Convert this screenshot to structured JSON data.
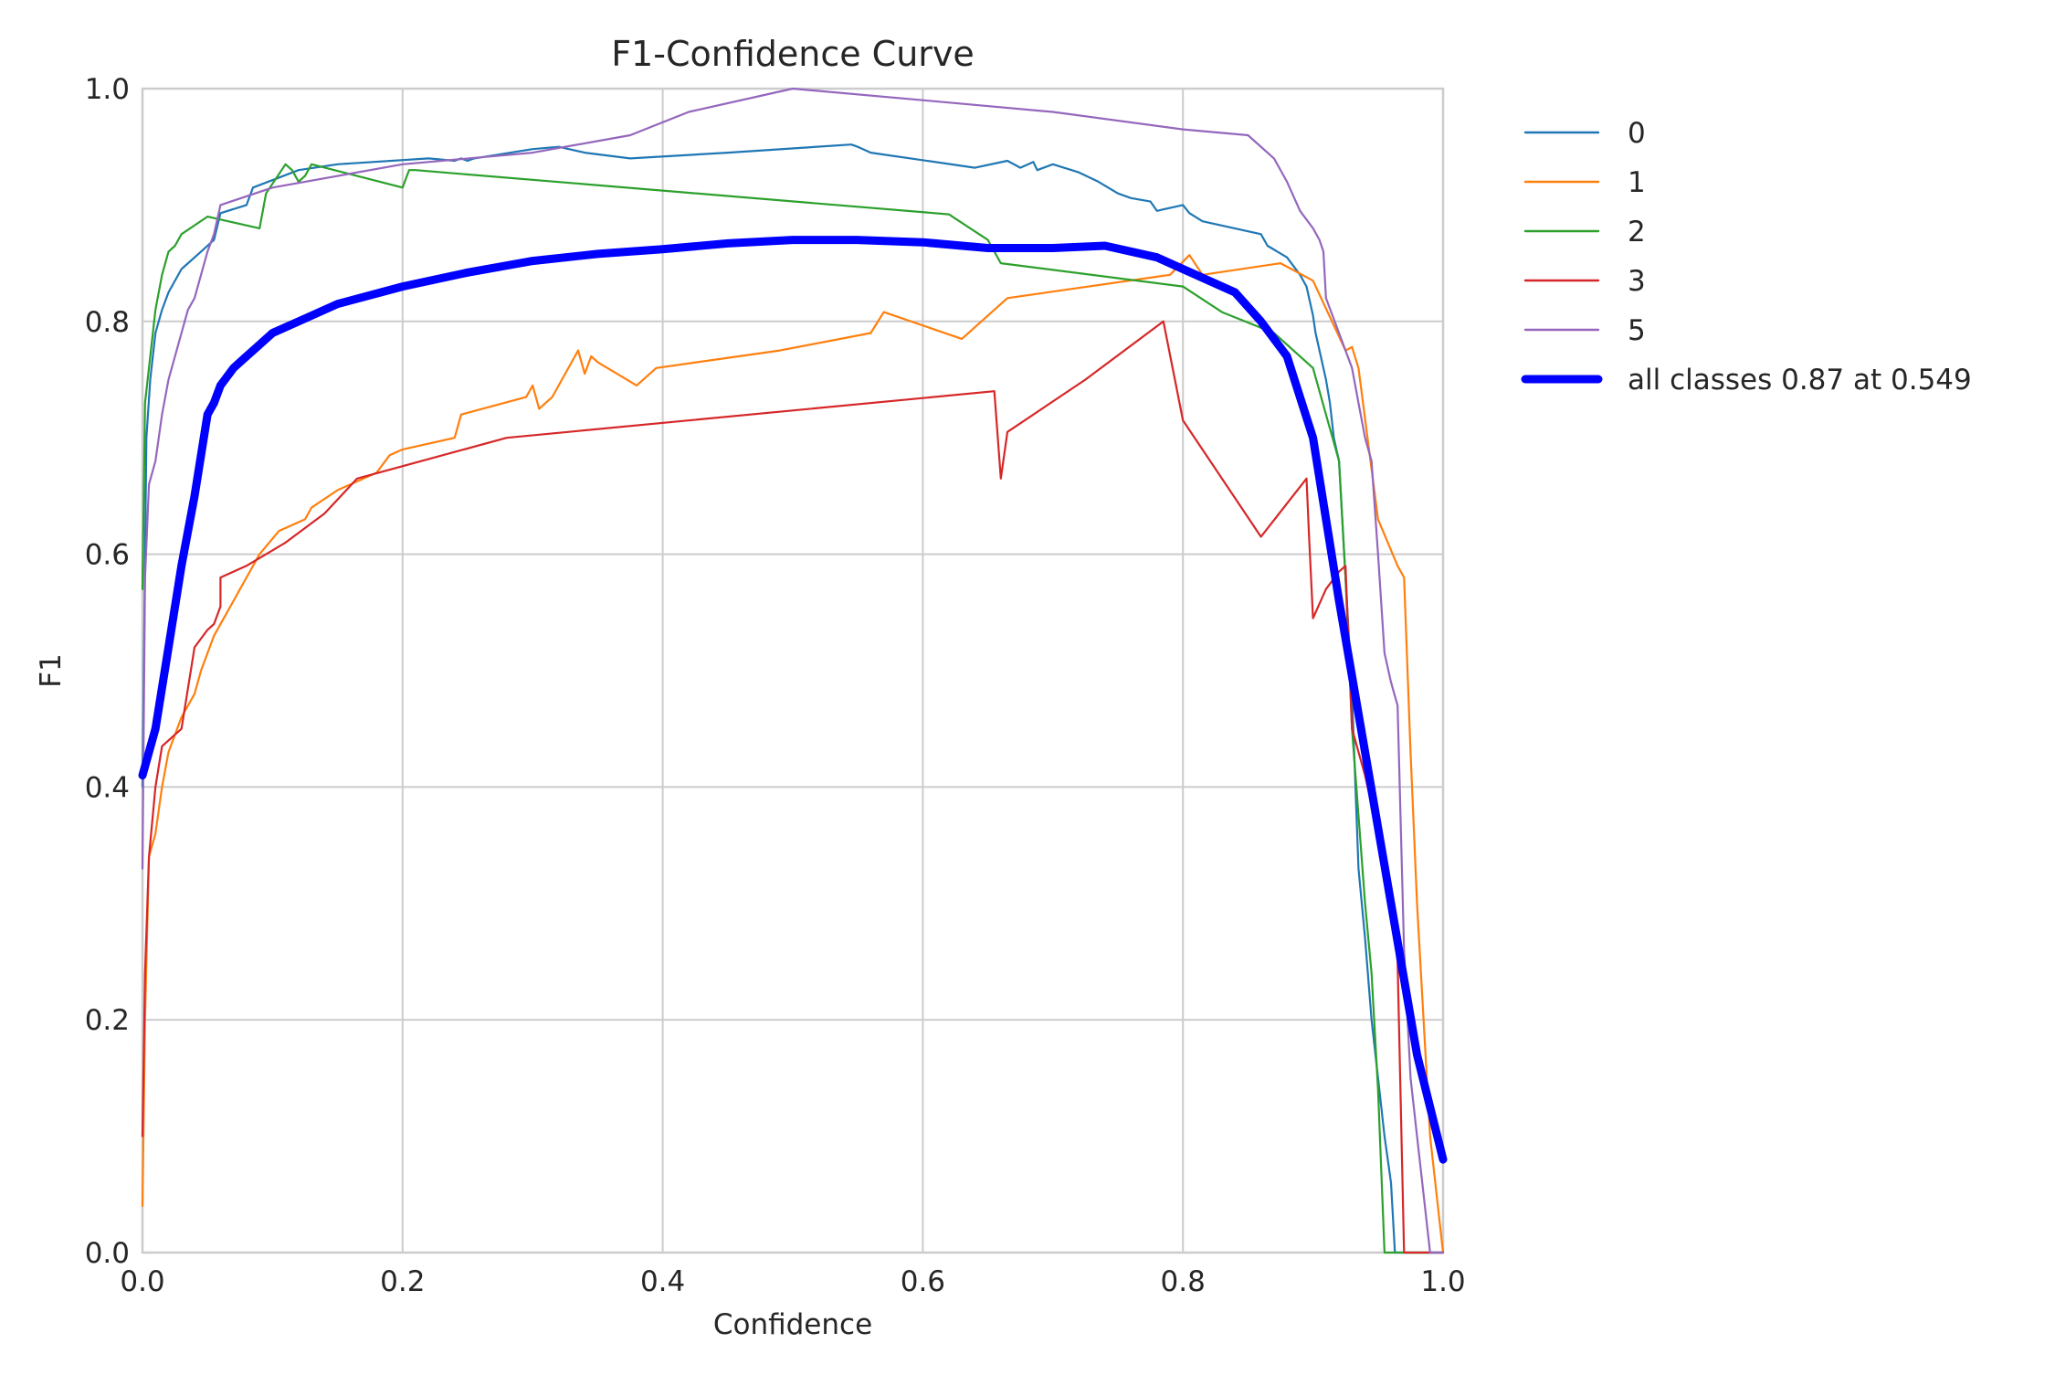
{
  "chart_data": {
    "type": "line",
    "title": "F1-Confidence Curve",
    "xlabel": "Confidence",
    "ylabel": "F1",
    "xlim": [
      0.0,
      1.0
    ],
    "ylim": [
      0.0,
      1.0
    ],
    "xticks": [
      "0.0",
      "0.2",
      "0.4",
      "0.6",
      "0.8",
      "1.0"
    ],
    "yticks": [
      "0.0",
      "0.2",
      "0.4",
      "0.6",
      "0.8",
      "1.0"
    ],
    "grid": true,
    "legend_position": "outside-right",
    "series": [
      {
        "name": "0",
        "color": "#1f77b4",
        "x": [
          0.0,
          0.003,
          0.006,
          0.01,
          0.015,
          0.02,
          0.03,
          0.045,
          0.055,
          0.06,
          0.08,
          0.085,
          0.12,
          0.15,
          0.22,
          0.24,
          0.245,
          0.25,
          0.255,
          0.3,
          0.32,
          0.34,
          0.375,
          0.45,
          0.545,
          0.55,
          0.56,
          0.64,
          0.665,
          0.675,
          0.685,
          0.688,
          0.7,
          0.72,
          0.735,
          0.75,
          0.76,
          0.775,
          0.78,
          0.8,
          0.805,
          0.815,
          0.86,
          0.865,
          0.88,
          0.89,
          0.895,
          0.9,
          0.902,
          0.905,
          0.91,
          0.913,
          0.916,
          0.92,
          0.925,
          0.93,
          0.935,
          0.94,
          0.945,
          0.95,
          0.955,
          0.96,
          0.963,
          0.965,
          1.0
        ],
        "y": [
          0.4,
          0.7,
          0.75,
          0.79,
          0.81,
          0.825,
          0.845,
          0.86,
          0.87,
          0.893,
          0.9,
          0.915,
          0.93,
          0.935,
          0.94,
          0.938,
          0.94,
          0.938,
          0.94,
          0.948,
          0.95,
          0.945,
          0.94,
          0.945,
          0.952,
          0.95,
          0.945,
          0.932,
          0.938,
          0.932,
          0.937,
          0.93,
          0.935,
          0.928,
          0.92,
          0.91,
          0.906,
          0.903,
          0.895,
          0.9,
          0.893,
          0.886,
          0.875,
          0.865,
          0.855,
          0.84,
          0.83,
          0.805,
          0.79,
          0.775,
          0.75,
          0.73,
          0.7,
          0.68,
          0.58,
          0.48,
          0.33,
          0.27,
          0.2,
          0.15,
          0.1,
          0.06,
          0.0,
          0.0,
          0.0
        ]
      },
      {
        "name": "1",
        "color": "#ff7f0e",
        "x": [
          0.0,
          0.002,
          0.005,
          0.01,
          0.015,
          0.02,
          0.03,
          0.04,
          0.045,
          0.055,
          0.065,
          0.07,
          0.075,
          0.08,
          0.09,
          0.105,
          0.125,
          0.13,
          0.15,
          0.17,
          0.18,
          0.19,
          0.2,
          0.24,
          0.245,
          0.295,
          0.3,
          0.305,
          0.315,
          0.325,
          0.335,
          0.34,
          0.345,
          0.35,
          0.38,
          0.395,
          0.49,
          0.56,
          0.57,
          0.63,
          0.645,
          0.665,
          0.79,
          0.805,
          0.815,
          0.875,
          0.9,
          0.925,
          0.93,
          0.935,
          0.95,
          0.965,
          0.97,
          0.975,
          0.98,
          0.99,
          1.0
        ],
        "y": [
          0.04,
          0.2,
          0.34,
          0.36,
          0.4,
          0.43,
          0.46,
          0.48,
          0.5,
          0.53,
          0.55,
          0.56,
          0.57,
          0.58,
          0.6,
          0.62,
          0.63,
          0.64,
          0.655,
          0.665,
          0.67,
          0.685,
          0.69,
          0.7,
          0.72,
          0.735,
          0.745,
          0.725,
          0.735,
          0.755,
          0.775,
          0.755,
          0.77,
          0.765,
          0.745,
          0.76,
          0.775,
          0.79,
          0.808,
          0.785,
          0.8,
          0.82,
          0.84,
          0.857,
          0.84,
          0.85,
          0.835,
          0.775,
          0.778,
          0.76,
          0.63,
          0.59,
          0.58,
          0.43,
          0.3,
          0.1,
          0.0
        ]
      },
      {
        "name": "2",
        "color": "#2ca02c",
        "x": [
          0.0,
          0.002,
          0.005,
          0.01,
          0.015,
          0.02,
          0.025,
          0.03,
          0.05,
          0.09,
          0.095,
          0.11,
          0.115,
          0.12,
          0.125,
          0.13,
          0.2,
          0.205,
          0.21,
          0.62,
          0.65,
          0.66,
          0.8,
          0.83,
          0.87,
          0.9,
          0.91,
          0.915,
          0.92,
          0.925,
          0.93,
          0.94,
          0.945,
          0.95,
          0.955,
          1.0
        ],
        "y": [
          0.57,
          0.73,
          0.76,
          0.81,
          0.84,
          0.86,
          0.865,
          0.875,
          0.89,
          0.88,
          0.91,
          0.935,
          0.93,
          0.92,
          0.925,
          0.935,
          0.915,
          0.93,
          0.93,
          0.892,
          0.87,
          0.85,
          0.83,
          0.808,
          0.79,
          0.76,
          0.72,
          0.7,
          0.68,
          0.58,
          0.45,
          0.3,
          0.24,
          0.14,
          0.0,
          0.0
        ]
      },
      {
        "name": "3",
        "color": "#d62728",
        "x": [
          0.0,
          0.002,
          0.005,
          0.01,
          0.015,
          0.02,
          0.03,
          0.04,
          0.05,
          0.055,
          0.06,
          0.06,
          0.08,
          0.11,
          0.14,
          0.165,
          0.28,
          0.655,
          0.66,
          0.665,
          0.725,
          0.785,
          0.8,
          0.86,
          0.895,
          0.897,
          0.9,
          0.91,
          0.92,
          0.925,
          0.93,
          0.94,
          0.95,
          0.96,
          0.965,
          0.97,
          1.0
        ],
        "y": [
          0.1,
          0.24,
          0.34,
          0.4,
          0.435,
          0.44,
          0.45,
          0.52,
          0.535,
          0.54,
          0.555,
          0.58,
          0.59,
          0.61,
          0.635,
          0.665,
          0.7,
          0.74,
          0.665,
          0.705,
          0.75,
          0.8,
          0.715,
          0.615,
          0.665,
          0.615,
          0.545,
          0.57,
          0.585,
          0.59,
          0.45,
          0.41,
          0.36,
          0.3,
          0.25,
          0.0,
          0.0
        ]
      },
      {
        "name": "5",
        "color": "#9467bd",
        "x": [
          0.0,
          0.002,
          0.005,
          0.01,
          0.015,
          0.02,
          0.025,
          0.03,
          0.035,
          0.04,
          0.045,
          0.05,
          0.055,
          0.06,
          0.1,
          0.2,
          0.3,
          0.375,
          0.42,
          0.5,
          0.6,
          0.7,
          0.8,
          0.85,
          0.87,
          0.88,
          0.89,
          0.9,
          0.905,
          0.908,
          0.91,
          0.92,
          0.93,
          0.935,
          0.94,
          0.945,
          0.95,
          0.955,
          0.96,
          0.965,
          0.97,
          0.975,
          0.98,
          0.99,
          1.0
        ],
        "y": [
          0.33,
          0.58,
          0.66,
          0.68,
          0.72,
          0.75,
          0.77,
          0.79,
          0.81,
          0.82,
          0.84,
          0.86,
          0.875,
          0.9,
          0.915,
          0.935,
          0.945,
          0.96,
          0.98,
          1.0,
          0.99,
          0.98,
          0.965,
          0.96,
          0.94,
          0.92,
          0.895,
          0.88,
          0.87,
          0.86,
          0.82,
          0.79,
          0.76,
          0.73,
          0.7,
          0.68,
          0.6,
          0.515,
          0.49,
          0.47,
          0.26,
          0.15,
          0.1,
          0.0,
          0.0
        ]
      },
      {
        "name": "all classes 0.87 at 0.549",
        "color": "#0000ff",
        "thick": true,
        "x": [
          0.0,
          0.01,
          0.02,
          0.03,
          0.04,
          0.05,
          0.055,
          0.06,
          0.07,
          0.08,
          0.09,
          0.1,
          0.12,
          0.15,
          0.2,
          0.25,
          0.3,
          0.35,
          0.4,
          0.45,
          0.5,
          0.549,
          0.6,
          0.65,
          0.7,
          0.74,
          0.78,
          0.8,
          0.84,
          0.86,
          0.88,
          0.9,
          0.92,
          0.94,
          0.96,
          0.98,
          1.0
        ],
        "y": [
          0.41,
          0.45,
          0.52,
          0.59,
          0.65,
          0.72,
          0.73,
          0.745,
          0.76,
          0.77,
          0.78,
          0.79,
          0.8,
          0.815,
          0.83,
          0.842,
          0.852,
          0.858,
          0.862,
          0.867,
          0.87,
          0.87,
          0.868,
          0.863,
          0.863,
          0.865,
          0.855,
          0.845,
          0.825,
          0.8,
          0.77,
          0.7,
          0.56,
          0.43,
          0.3,
          0.17,
          0.08
        ]
      }
    ]
  }
}
